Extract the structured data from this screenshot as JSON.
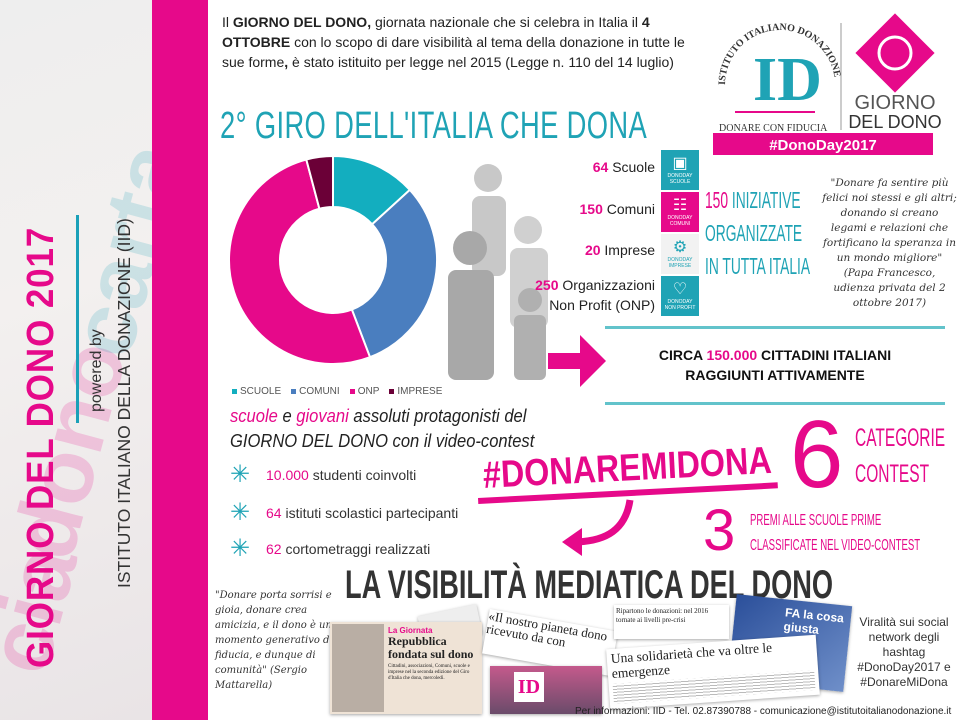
{
  "sidebar": {
    "title": "GIORNO DEL DONO 2017",
    "powered_by": "powered by",
    "institute": "ISTITUTO ITALIANO DELLA DONAZIONE (IID)"
  },
  "intro": {
    "bold1": "GIORNO DEL DONO,",
    "pre1": "Il ",
    "text1": " giornata nazionale che si celebra in Italia il ",
    "bold2": "4 OTTOBRE",
    "text2": " con lo scopo di dare visibilità al tema della donazione in tutte le sue forme",
    "bold3": ",",
    "text3": " è stato istituito per legge nel 2015 (Legge n. 110 del 14 luglio)"
  },
  "logos": {
    "iid_arc": "ISTITUTO ITALIANO DONAZIONE",
    "iid_mark": "ID",
    "iid_tagline": "DONARE CON FIDUCIA",
    "gdd_line1": "GIORNO",
    "gdd_line2": "DEL DONO",
    "hashtag": "#DonoDay2017"
  },
  "giro_title": "2° GIRO DELL'ITALIA CHE DONA",
  "colors": {
    "pink": "#e6098a",
    "teal": "#1fa3b5",
    "blue": "#4a7ebf",
    "dark": "#6b0037"
  },
  "chart_data": {
    "type": "pie",
    "donut": true,
    "categories": [
      "SCUOLE",
      "COMUNI",
      "ONP",
      "IMPRESE"
    ],
    "values": [
      64,
      150,
      250,
      20
    ],
    "colors": [
      "#13aebf",
      "#4a7ebf",
      "#e6098a",
      "#6b0037"
    ],
    "legend": "bottom"
  },
  "stats": [
    {
      "num": "64",
      "label": "Scuole",
      "tile": "SCUOLE",
      "icon": "book-icon"
    },
    {
      "num": "150",
      "label": "Comuni",
      "tile": "COMUNI",
      "icon": "building-icon"
    },
    {
      "num": "20",
      "label": "Imprese",
      "tile": "IMPRESE",
      "icon": "gears-icon"
    },
    {
      "num": "250",
      "label": "Organizzazioni Non Profit (ONP)",
      "tile": "NON PROFIT",
      "icon": "heart-icon"
    }
  ],
  "tile_prefix": "DONODAY",
  "iniziative": {
    "num": "150",
    "l1": " INIZIATIVE",
    "l2": "ORGANIZZATE",
    "l3": "IN TUTTA ITALIA"
  },
  "papa_quote": "\"Donare fa sentire più felici noi stessi e gli altri; donando si creano legami e relazioni che fortificano la speranza in un mondo migliore\" (Papa Francesco, udienza privata del 2 ottobre 2017)",
  "reach": {
    "pre": "CIRCA ",
    "num": "150.000",
    "post": " CITTADINI ITALIANI",
    "line2": "RAGGIUNTI ATTIVAMENTE"
  },
  "schools": {
    "w1": "scuole",
    "t1": " e ",
    "w2": "giovani",
    "t2": " assoluti protagonisti del",
    "line2": "GIORNO DEL DONO con il video-contest"
  },
  "bullets": [
    {
      "num": "10.000",
      "text": " studenti coinvolti"
    },
    {
      "num": "64",
      "text": " istituti scolastici partecipanti"
    },
    {
      "num": "62",
      "text": " cortometraggi realizzati"
    }
  ],
  "contest": {
    "hashtag": "#DONAREMIDONA",
    "six": "6",
    "cat1": "CATEGORIE",
    "cat2": "CONTEST",
    "three": "3",
    "premi1": "PREMI ALLE SCUOLE PRIME",
    "premi2": "CLASSIFICATE NEL VIDEO-CONTEST"
  },
  "visibility_title": "LA VISIBILITÀ MEDIATICA DEL DONO",
  "mattarella_quote": "\"Donare porta sorrisi e gioia, donare crea amicizia, e il dono è un momento generativo di fiducia, e dunque di comunità\" (Sergio Mattarella)",
  "clippings": {
    "c1_kicker": "La Giornata",
    "c1_head": "Repubblica fondata sul dono",
    "c1_body": "Cittadini, associazioni, Comuni, scuole e imprese nel la seconda edizione del Giro d'Italia che dona, mercoledì.",
    "c2_head": "«Il nostro pianeta dono ricevuto da con",
    "c3_head": "Ripartono le donazioni: nel 2016 tornate ai livelli pre-crisi",
    "c4_head": "Una solidarietà che va oltre le emergenze",
    "c5_head": "FA la cosa giusta"
  },
  "viral": "Viralità sui social network degli hashtag #DonoDay2017 e #DonareMiDona",
  "footer": "Per informazioni: IID - Tel. 02.87390788 - comunicazione@istitutoitalianodonazione.it"
}
